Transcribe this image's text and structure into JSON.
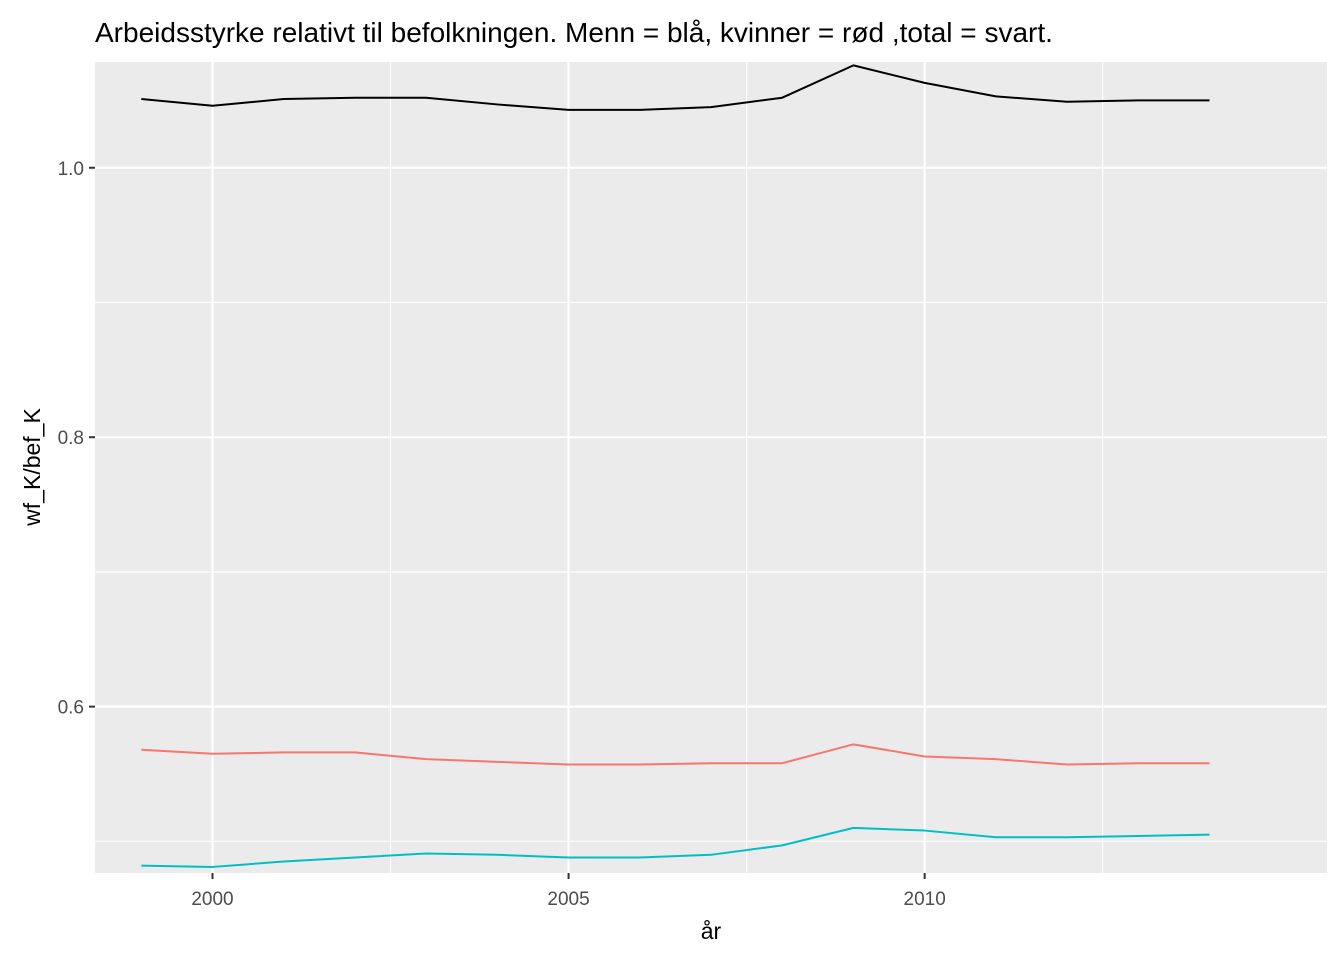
{
  "chart_data": {
    "type": "line",
    "title": "Arbeidsstyrke relativt til befolkningen. Menn = blå, kvinner = rød ,total = svart.",
    "xlabel": "år",
    "ylabel": "wf_K/bef_K",
    "xlim": [
      1998.35,
      2015.65
    ],
    "ylim": [
      0.4765,
      1.0785
    ],
    "x_ticks": [
      2000,
      2005,
      2010
    ],
    "y_ticks": [
      0.6,
      0.8,
      1.0
    ],
    "x_tick_labels": [
      "2000",
      "2005",
      "2010"
    ],
    "y_tick_labels": [
      "0.6",
      "0.8",
      "1.0"
    ],
    "grid": true,
    "legend": "none",
    "background_color": "#ebebeb",
    "grid_color": "#ffffff",
    "x": [
      1999,
      2000,
      2001,
      2002,
      2003,
      2004,
      2005,
      2006,
      2007,
      2008,
      2009,
      2010,
      2011,
      2012,
      2013,
      2014
    ],
    "series": [
      {
        "color": "#000000",
        "values": [
          1.051,
          1.046,
          1.051,
          1.052,
          1.052,
          1.047,
          1.043,
          1.043,
          1.045,
          1.052,
          1.076,
          1.063,
          1.053,
          1.049,
          1.05,
          1.05
        ]
      },
      {
        "color": "#f8766d",
        "values": [
          0.568,
          0.565,
          0.566,
          0.566,
          0.561,
          0.559,
          0.557,
          0.557,
          0.558,
          0.558,
          0.572,
          0.563,
          0.561,
          0.557,
          0.558,
          0.558
        ]
      },
      {
        "color": "#00bfc4",
        "values": [
          0.482,
          0.481,
          0.485,
          0.488,
          0.491,
          0.49,
          0.488,
          0.488,
          0.49,
          0.497,
          0.51,
          0.508,
          0.503,
          0.503,
          0.504,
          0.505
        ]
      }
    ]
  }
}
